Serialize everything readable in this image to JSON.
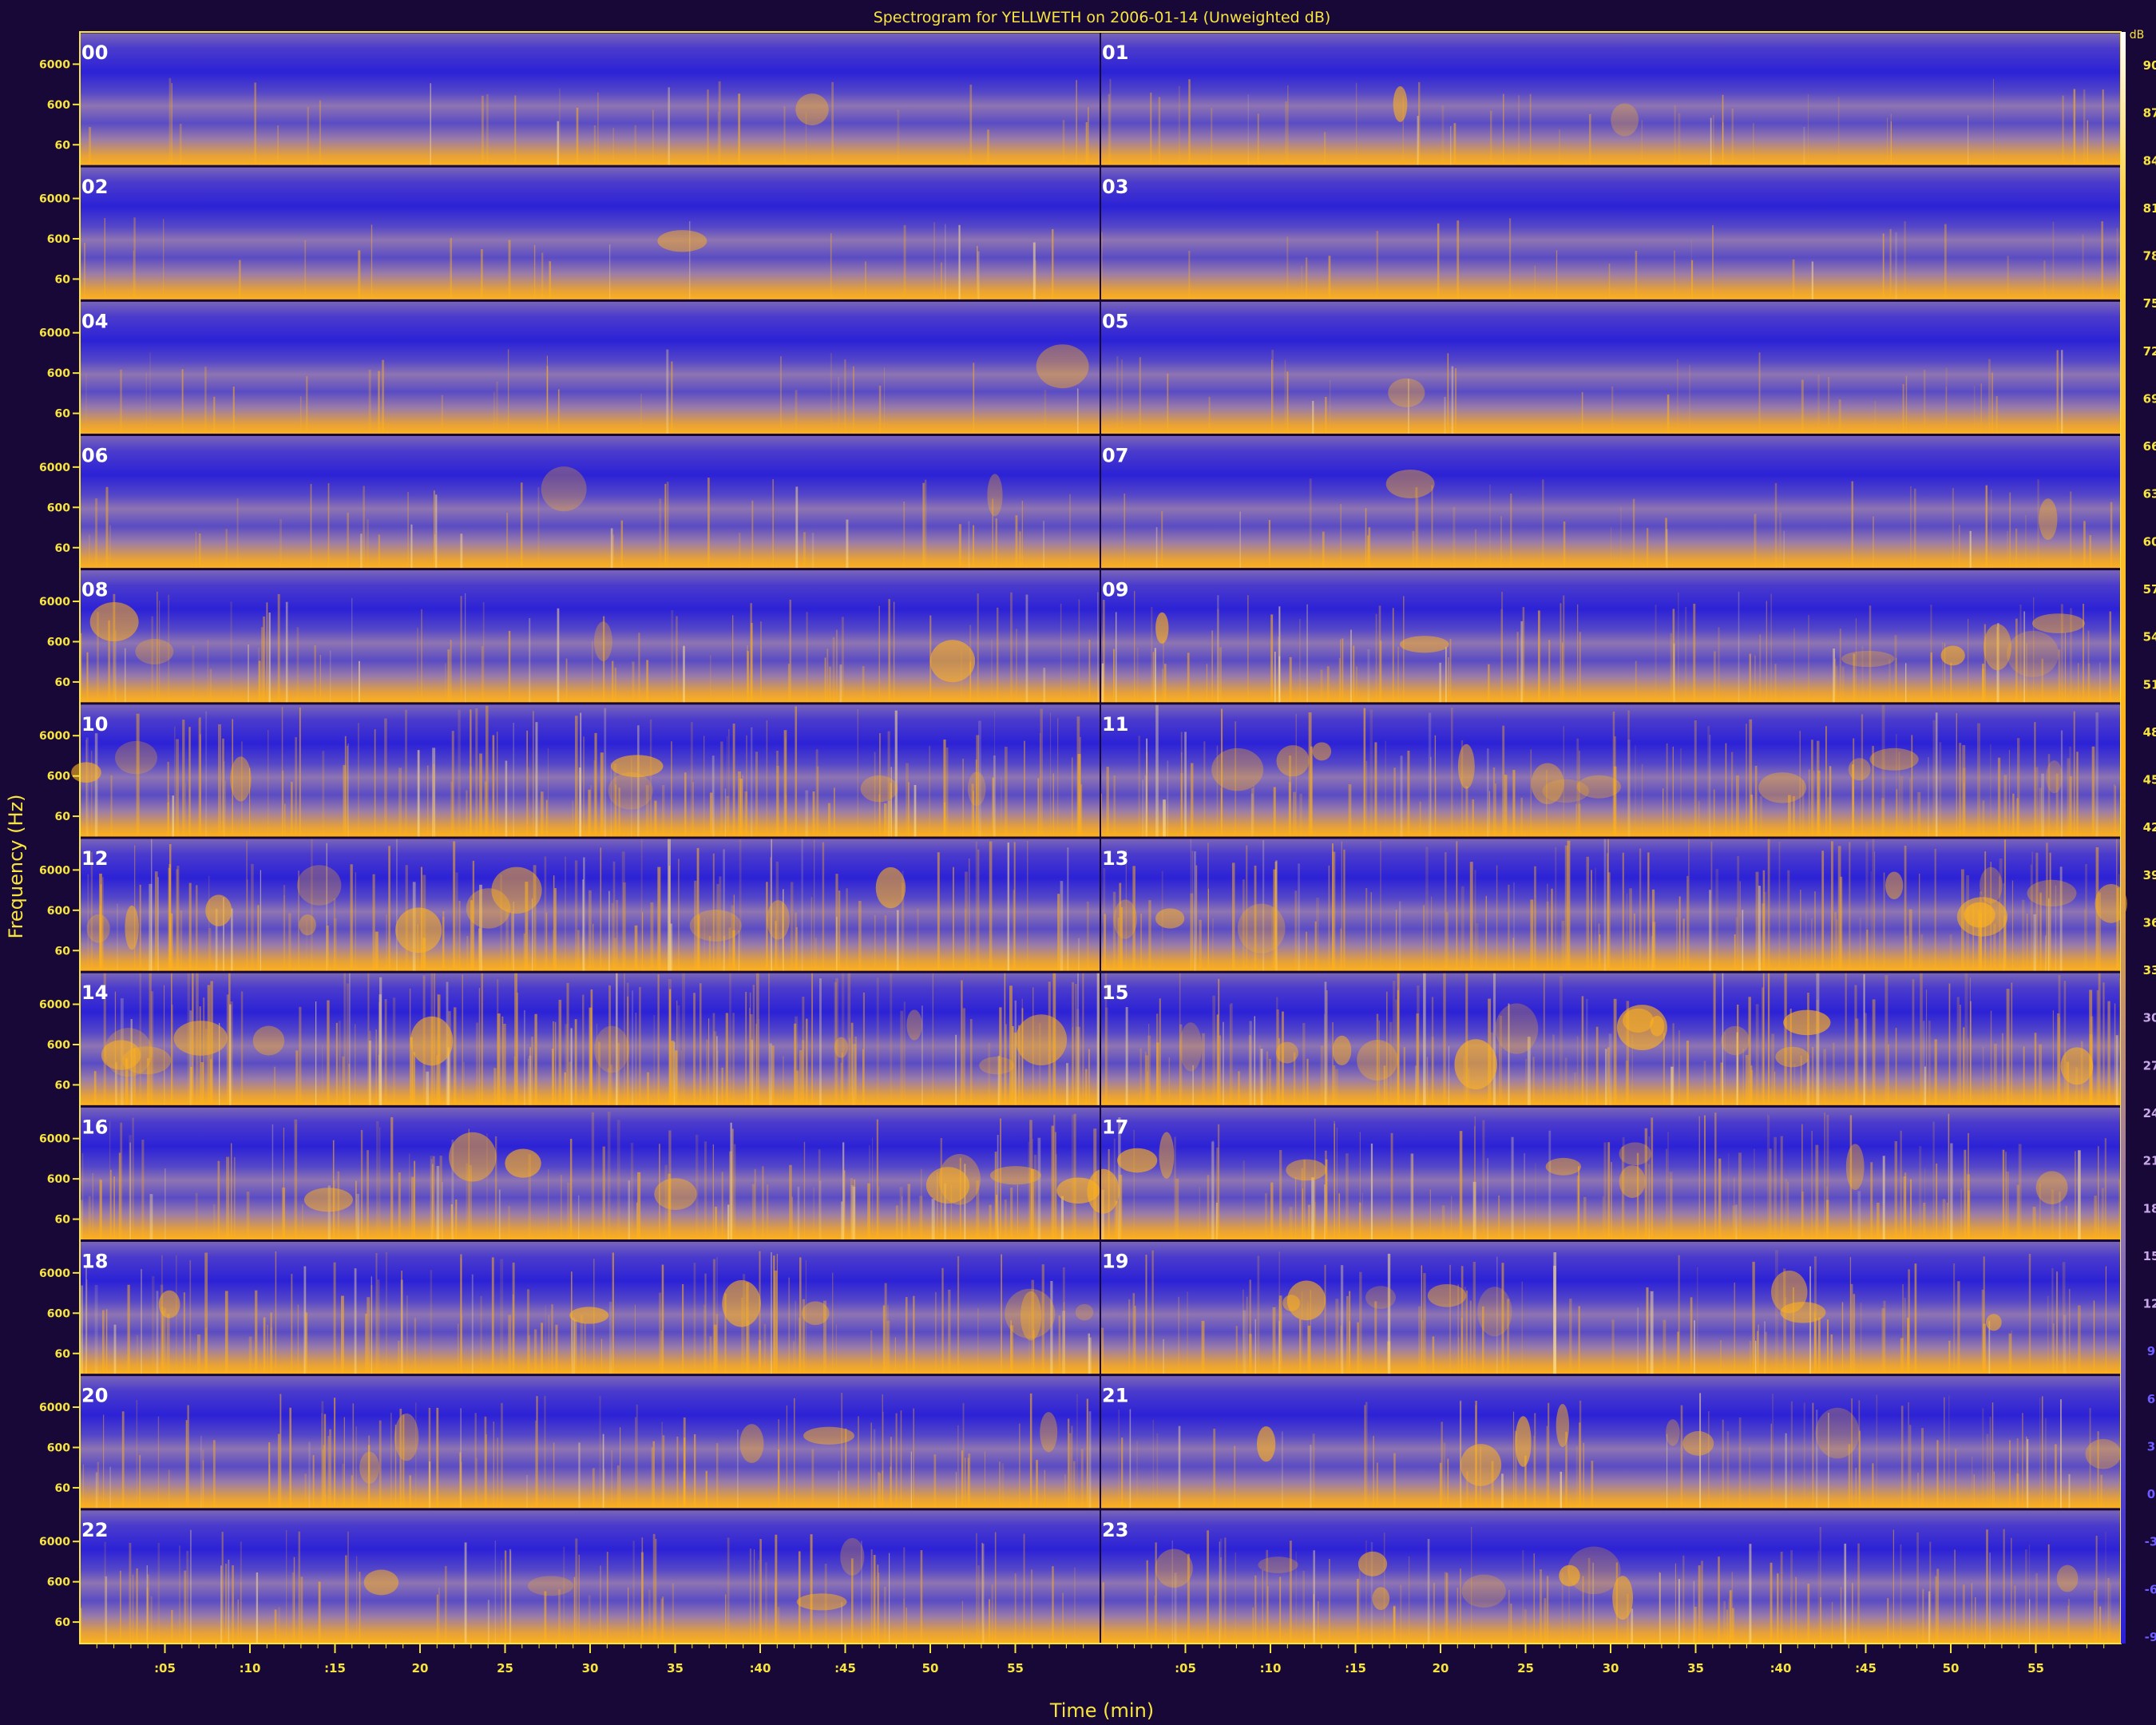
{
  "chart_data": {
    "type": "heatmap",
    "title": "Spectrogram for YELLWETH on 2006-01-14 (Unweighted dB)",
    "xlabel": "Time (min)",
    "ylabel": "Frequency (Hz)",
    "colorbar_unit": "dB",
    "y_scale": "log",
    "y_tick_labels": [
      "6000",
      "600",
      "60"
    ],
    "x_tick_labels": [
      ":05",
      ":10",
      ":15",
      "20",
      "25",
      "30",
      "35",
      ":40",
      ":45",
      "50",
      "55"
    ],
    "hour_labels": [
      "00",
      "01",
      "02",
      "03",
      "04",
      "05",
      "06",
      "07",
      "08",
      "09",
      "10",
      "11",
      "12",
      "13",
      "14",
      "15",
      "16",
      "17",
      "18",
      "19",
      "20",
      "21",
      "22",
      "23"
    ],
    "colorbar_ticks": [
      90,
      87,
      84,
      81,
      78,
      75,
      72,
      69,
      66,
      63,
      60,
      57,
      54,
      51,
      48,
      45,
      42,
      39,
      36,
      33,
      30,
      27,
      24,
      21,
      18,
      15,
      12,
      9,
      6,
      3,
      0,
      -3,
      -6,
      -9
    ],
    "colormap": {
      "low": "#2a1fd8",
      "mid": "#8f74b8",
      "high": "#ffb21a",
      "peak": "#ffffff"
    },
    "rows": [
      {
        "left_hour": "00",
        "right_hour": "01",
        "activity": 0.1
      },
      {
        "left_hour": "02",
        "right_hour": "03",
        "activity": 0.05
      },
      {
        "left_hour": "04",
        "right_hour": "05",
        "activity": 0.08
      },
      {
        "left_hour": "06",
        "right_hour": "07",
        "activity": 0.15
      },
      {
        "left_hour": "08",
        "right_hour": "09",
        "activity": 0.4
      },
      {
        "left_hour": "10",
        "right_hour": "11",
        "activity": 0.65
      },
      {
        "left_hour": "12",
        "right_hour": "13",
        "activity": 0.7
      },
      {
        "left_hour": "14",
        "right_hour": "15",
        "activity": 0.85
      },
      {
        "left_hour": "16",
        "right_hour": "17",
        "activity": 0.6
      },
      {
        "left_hour": "18",
        "right_hour": "19",
        "activity": 0.55
      },
      {
        "left_hour": "20",
        "right_hour": "21",
        "activity": 0.45
      },
      {
        "left_hour": "22",
        "right_hour": "23",
        "activity": 0.45
      }
    ]
  }
}
